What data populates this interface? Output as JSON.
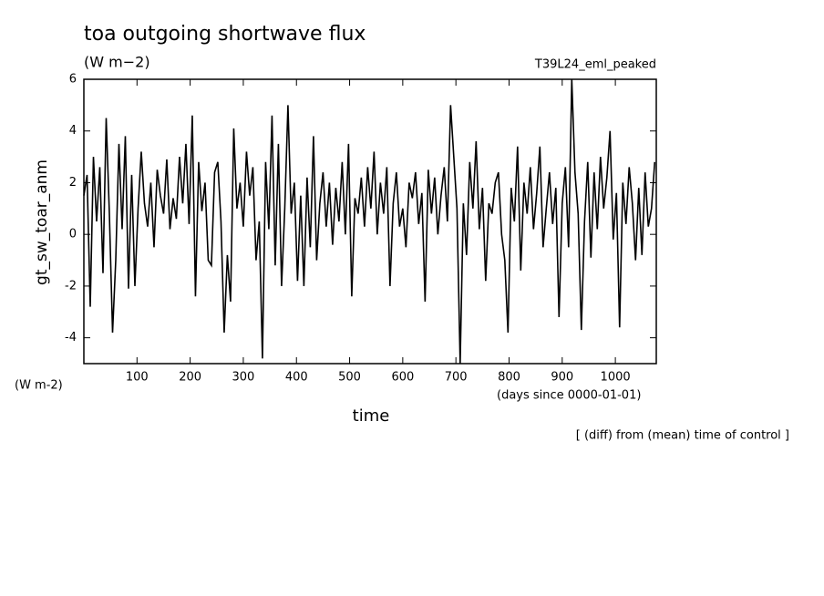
{
  "chart_data": {
    "type": "line",
    "title": "toa outgoing shortwave flux",
    "subtitle": "(W m−2)",
    "annotation": "T39L24_eml_peaked",
    "y_label": "gt_sw_toar_anm",
    "y_unit": "(W m-2)",
    "x_label": "time",
    "x_unit": "(days since 0000-01-01)",
    "note": "[ (diff) from (mean) time of control ]",
    "color": "#000000",
    "xlim": [
      0,
      1077
    ],
    "ylim": [
      -5,
      6
    ],
    "xticks": [
      100,
      200,
      300,
      400,
      500,
      600,
      700,
      800,
      900,
      1000
    ],
    "yticks": [
      -4,
      -2,
      0,
      2,
      4,
      6
    ],
    "x": [
      0,
      6,
      12,
      18,
      24,
      30,
      36,
      42,
      48,
      54,
      60,
      66,
      72,
      78,
      84,
      90,
      96,
      102,
      108,
      114,
      120,
      126,
      132,
      138,
      144,
      150,
      156,
      162,
      168,
      174,
      180,
      186,
      192,
      198,
      204,
      210,
      216,
      222,
      228,
      234,
      240,
      246,
      252,
      258,
      264,
      270,
      276,
      282,
      288,
      294,
      300,
      306,
      312,
      318,
      324,
      330,
      336,
      342,
      348,
      354,
      360,
      366,
      372,
      378,
      384,
      390,
      396,
      402,
      408,
      414,
      420,
      426,
      432,
      438,
      444,
      450,
      456,
      462,
      468,
      474,
      480,
      486,
      492,
      498,
      504,
      510,
      516,
      522,
      528,
      534,
      540,
      546,
      552,
      558,
      564,
      570,
      576,
      582,
      588,
      594,
      600,
      606,
      612,
      618,
      624,
      630,
      636,
      642,
      648,
      654,
      660,
      666,
      672,
      678,
      684,
      690,
      696,
      702,
      708,
      714,
      720,
      726,
      732,
      738,
      744,
      750,
      756,
      762,
      768,
      774,
      780,
      786,
      792,
      798,
      804,
      810,
      816,
      822,
      828,
      834,
      840,
      846,
      852,
      858,
      864,
      870,
      876,
      882,
      888,
      894,
      900,
      906,
      912,
      918,
      924,
      930,
      936,
      942,
      948,
      954,
      960,
      966,
      972,
      978,
      984,
      990,
      996,
      1002,
      1008,
      1014,
      1020,
      1026,
      1032,
      1038,
      1044,
      1050,
      1056,
      1062,
      1068,
      1074
    ],
    "values": [
      1.5,
      2.3,
      -2.8,
      3.0,
      0.5,
      2.6,
      -1.5,
      4.5,
      0.8,
      -3.8,
      -1.0,
      3.5,
      0.2,
      3.8,
      -2.1,
      2.3,
      -2.0,
      1.0,
      3.2,
      1.2,
      0.3,
      2.0,
      -0.5,
      2.5,
      1.5,
      0.8,
      2.9,
      0.2,
      1.4,
      0.6,
      3.0,
      1.2,
      3.5,
      0.4,
      4.6,
      -2.4,
      2.8,
      0.9,
      2.0,
      -1.0,
      -1.2,
      2.4,
      2.8,
      0.5,
      -3.8,
      -0.8,
      -2.6,
      4.1,
      1.0,
      2.0,
      0.3,
      3.2,
      1.5,
      2.6,
      -1.0,
      0.5,
      -4.8,
      2.8,
      0.2,
      4.6,
      -1.2,
      3.5,
      -2.0,
      1.0,
      5.0,
      0.8,
      2.0,
      -1.8,
      1.5,
      -2.0,
      2.2,
      -0.5,
      3.8,
      -1.0,
      1.2,
      2.4,
      0.3,
      2.0,
      -0.4,
      1.8,
      0.5,
      2.8,
      0.0,
      3.5,
      -2.4,
      1.4,
      0.8,
      2.2,
      0.3,
      2.6,
      1.0,
      3.2,
      0.0,
      2.0,
      0.8,
      2.6,
      -2.0,
      1.2,
      2.4,
      0.3,
      1.0,
      -0.5,
      2.0,
      1.4,
      2.4,
      0.4,
      1.6,
      -2.6,
      2.5,
      0.8,
      2.2,
      0.0,
      1.5,
      2.6,
      0.5,
      5.0,
      3.0,
      1.0,
      -5.0,
      1.2,
      -0.8,
      2.8,
      1.0,
      3.6,
      0.2,
      1.8,
      -1.8,
      1.2,
      0.8,
      2.0,
      2.4,
      0.0,
      -1.0,
      -3.8,
      1.8,
      0.5,
      3.4,
      -1.4,
      2.0,
      0.8,
      2.6,
      0.2,
      1.6,
      3.4,
      -0.5,
      1.0,
      2.4,
      0.4,
      1.8,
      -3.2,
      1.2,
      2.6,
      -0.5,
      6.0,
      2.4,
      0.8,
      -3.7,
      0.5,
      2.8,
      -0.9,
      2.4,
      0.2,
      3.0,
      1.0,
      2.2,
      4.0,
      -0.2,
      1.6,
      -3.6,
      2.0,
      0.4,
      2.6,
      1.2,
      -1.0,
      1.8,
      -0.8,
      2.4,
      0.3,
      1.0,
      2.8
    ]
  }
}
